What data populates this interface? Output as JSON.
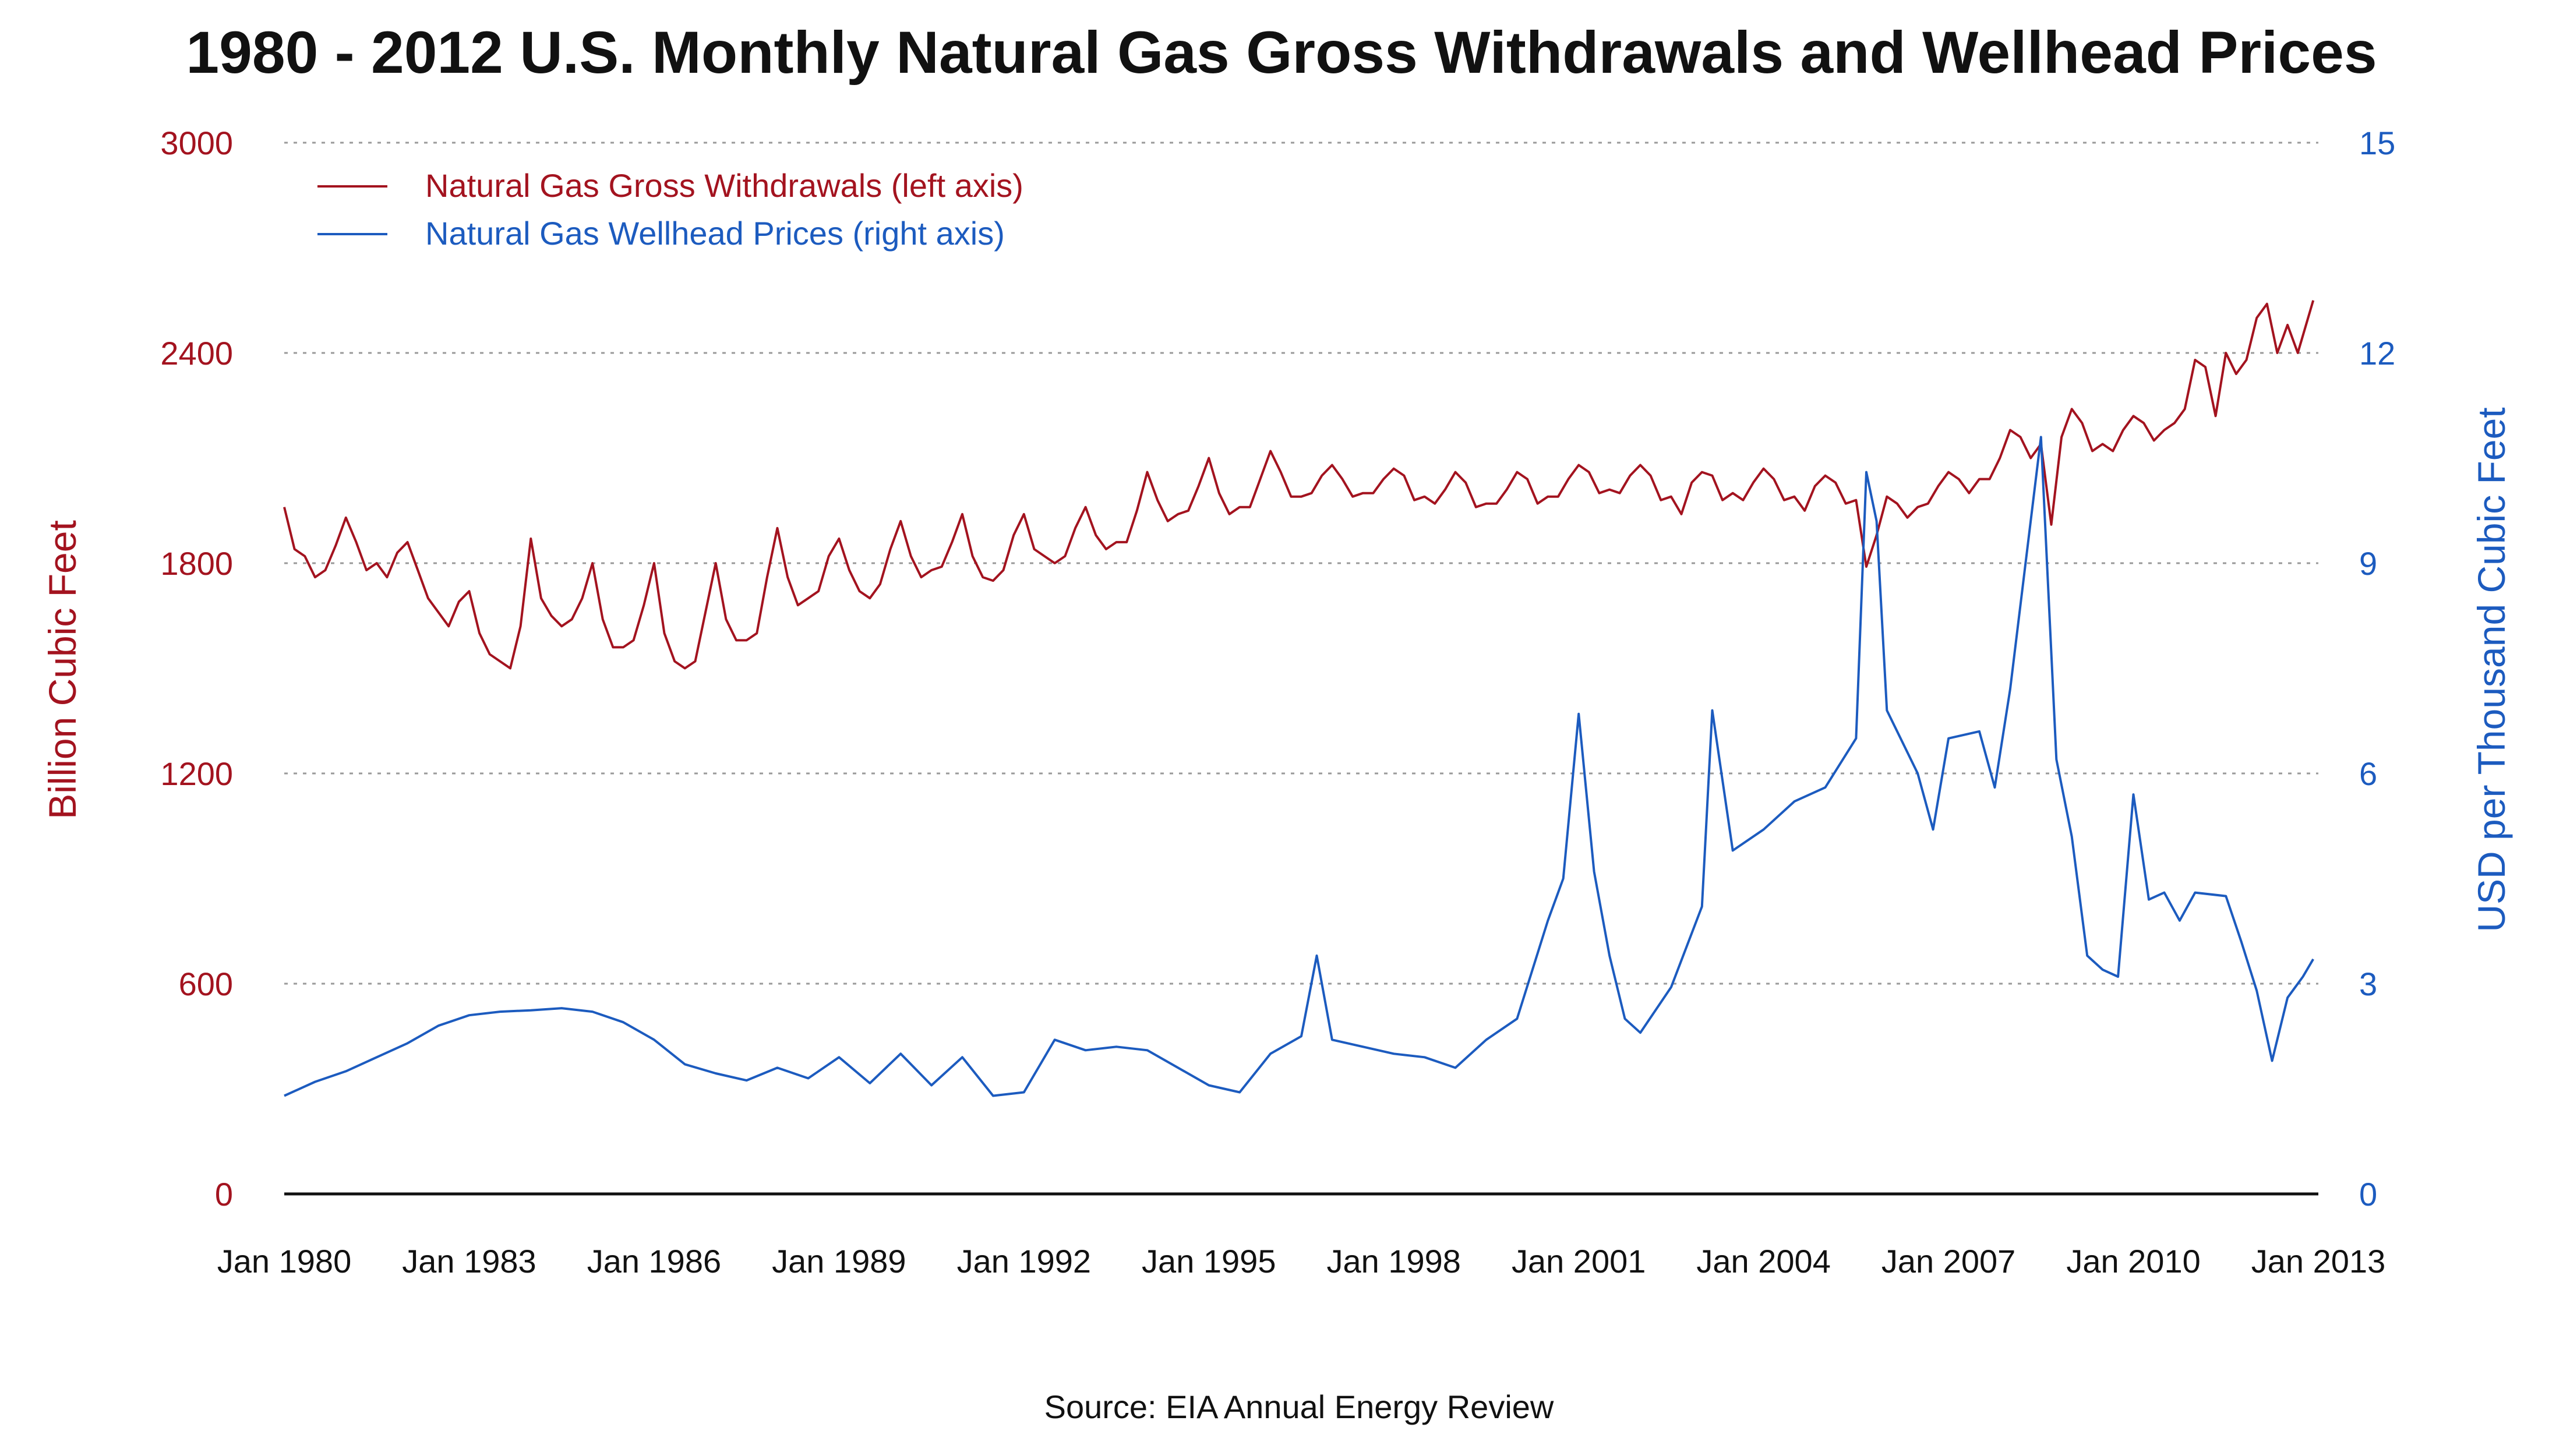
{
  "chart_data": {
    "type": "line",
    "title": "1980 - 2012 U.S. Monthly Natural Gas Gross Withdrawals and Wellhead Prices",
    "source": "Source: EIA Annual Energy Review",
    "xlabel": "",
    "x_start": "Jan 1980",
    "x_end": "Jan 2013",
    "x_ticks": [
      "Jan 1980",
      "Jan 1983",
      "Jan 1986",
      "Jan 1989",
      "Jan 1992",
      "Jan 1995",
      "Jan 1998",
      "Jan 2001",
      "Jan 2004",
      "Jan 2007",
      "Jan 2010",
      "Jan 2013"
    ],
    "y_left": {
      "label": "Billion Cubic Feet",
      "lim": [
        0,
        3000
      ],
      "ticks": [
        "0",
        "600",
        "1200",
        "1800",
        "2400",
        "3000"
      ],
      "color": "#a3131f"
    },
    "y_right": {
      "label": "USD per Thousand Cubic Feet",
      "lim": [
        0,
        15
      ],
      "ticks": [
        "0",
        "3",
        "6",
        "9",
        "12",
        "15"
      ],
      "color": "#1c5bbf"
    },
    "grid": "horizontal dotted",
    "legend_position": "top-left",
    "series": [
      {
        "name": "Natural Gas Gross Withdrawals (left axis)",
        "axis": "left",
        "color": "#a3131f",
        "points": [
          [
            "Jan 1980",
            1960
          ],
          [
            "Mar 1980",
            1840
          ],
          [
            "May 1980",
            1820
          ],
          [
            "Jul 1980",
            1760
          ],
          [
            "Sep 1980",
            1780
          ],
          [
            "Nov 1980",
            1850
          ],
          [
            "Jan 1981",
            1930
          ],
          [
            "Mar 1981",
            1860
          ],
          [
            "May 1981",
            1780
          ],
          [
            "Jul 1981",
            1800
          ],
          [
            "Sep 1981",
            1760
          ],
          [
            "Nov 1981",
            1830
          ],
          [
            "Jan 1982",
            1860
          ],
          [
            "Mar 1982",
            1780
          ],
          [
            "May 1982",
            1700
          ],
          [
            "Jul 1982",
            1660
          ],
          [
            "Sep 1982",
            1620
          ],
          [
            "Nov 1982",
            1690
          ],
          [
            "Jan 1983",
            1720
          ],
          [
            "Mar 1983",
            1600
          ],
          [
            "May 1983",
            1540
          ],
          [
            "Jul 1983",
            1520
          ],
          [
            "Sep 1983",
            1500
          ],
          [
            "Nov 1983",
            1620
          ],
          [
            "Jan 1984",
            1870
          ],
          [
            "Mar 1984",
            1700
          ],
          [
            "May 1984",
            1650
          ],
          [
            "Jul 1984",
            1620
          ],
          [
            "Sep 1984",
            1640
          ],
          [
            "Nov 1984",
            1700
          ],
          [
            "Jan 1985",
            1800
          ],
          [
            "Mar 1985",
            1640
          ],
          [
            "May 1985",
            1560
          ],
          [
            "Jul 1985",
            1560
          ],
          [
            "Sep 1985",
            1580
          ],
          [
            "Nov 1985",
            1680
          ],
          [
            "Jan 1986",
            1800
          ],
          [
            "Mar 1986",
            1600
          ],
          [
            "May 1986",
            1520
          ],
          [
            "Jul 1986",
            1500
          ],
          [
            "Sep 1986",
            1520
          ],
          [
            "Nov 1986",
            1660
          ],
          [
            "Jan 1987",
            1800
          ],
          [
            "Mar 1987",
            1640
          ],
          [
            "May 1987",
            1580
          ],
          [
            "Jul 1987",
            1580
          ],
          [
            "Sep 1987",
            1600
          ],
          [
            "Nov 1987",
            1760
          ],
          [
            "Jan 1988",
            1900
          ],
          [
            "Mar 1988",
            1760
          ],
          [
            "May 1988",
            1680
          ],
          [
            "Jul 1988",
            1700
          ],
          [
            "Sep 1988",
            1720
          ],
          [
            "Nov 1988",
            1820
          ],
          [
            "Jan 1989",
            1870
          ],
          [
            "Mar 1989",
            1780
          ],
          [
            "May 1989",
            1720
          ],
          [
            "Jul 1989",
            1700
          ],
          [
            "Sep 1989",
            1740
          ],
          [
            "Nov 1989",
            1840
          ],
          [
            "Jan 1990",
            1920
          ],
          [
            "Mar 1990",
            1820
          ],
          [
            "May 1990",
            1760
          ],
          [
            "Jul 1990",
            1780
          ],
          [
            "Sep 1990",
            1790
          ],
          [
            "Nov 1990",
            1860
          ],
          [
            "Jan 1991",
            1940
          ],
          [
            "Mar 1991",
            1820
          ],
          [
            "May 1991",
            1760
          ],
          [
            "Jul 1991",
            1750
          ],
          [
            "Sep 1991",
            1780
          ],
          [
            "Nov 1991",
            1880
          ],
          [
            "Jan 1992",
            1940
          ],
          [
            "Mar 1992",
            1840
          ],
          [
            "May 1992",
            1820
          ],
          [
            "Jul 1992",
            1800
          ],
          [
            "Sep 1992",
            1820
          ],
          [
            "Nov 1992",
            1900
          ],
          [
            "Jan 1993",
            1960
          ],
          [
            "Mar 1993",
            1880
          ],
          [
            "May 1993",
            1840
          ],
          [
            "Jul 1993",
            1860
          ],
          [
            "Sep 1993",
            1860
          ],
          [
            "Nov 1993",
            1950
          ],
          [
            "Jan 1994",
            2060
          ],
          [
            "Mar 1994",
            1980
          ],
          [
            "May 1994",
            1920
          ],
          [
            "Jul 1994",
            1940
          ],
          [
            "Sep 1994",
            1950
          ],
          [
            "Nov 1994",
            2020
          ],
          [
            "Jan 1995",
            2100
          ],
          [
            "Mar 1995",
            2000
          ],
          [
            "May 1995",
            1940
          ],
          [
            "Jul 1995",
            1960
          ],
          [
            "Sep 1995",
            1960
          ],
          [
            "Nov 1995",
            2040
          ],
          [
            "Jan 1996",
            2120
          ],
          [
            "Mar 1996",
            2060
          ],
          [
            "May 1996",
            1990
          ],
          [
            "Jul 1996",
            1990
          ],
          [
            "Sep 1996",
            2000
          ],
          [
            "Nov 1996",
            2050
          ],
          [
            "Jan 1997",
            2080
          ],
          [
            "Mar 1997",
            2040
          ],
          [
            "May 1997",
            1990
          ],
          [
            "Jul 1997",
            2000
          ],
          [
            "Sep 1997",
            2000
          ],
          [
            "Nov 1997",
            2040
          ],
          [
            "Jan 1998",
            2070
          ],
          [
            "Mar 1998",
            2050
          ],
          [
            "May 1998",
            1980
          ],
          [
            "Jul 1998",
            1990
          ],
          [
            "Sep 1998",
            1970
          ],
          [
            "Nov 1998",
            2010
          ],
          [
            "Jan 1999",
            2060
          ],
          [
            "Mar 1999",
            2030
          ],
          [
            "May 1999",
            1960
          ],
          [
            "Jul 1999",
            1970
          ],
          [
            "Sep 1999",
            1970
          ],
          [
            "Nov 1999",
            2010
          ],
          [
            "Jan 2000",
            2060
          ],
          [
            "Mar 2000",
            2040
          ],
          [
            "May 2000",
            1970
          ],
          [
            "Jul 2000",
            1990
          ],
          [
            "Sep 2000",
            1990
          ],
          [
            "Nov 2000",
            2040
          ],
          [
            "Jan 2001",
            2080
          ],
          [
            "Mar 2001",
            2060
          ],
          [
            "May 2001",
            2000
          ],
          [
            "Jul 2001",
            2010
          ],
          [
            "Sep 2001",
            2000
          ],
          [
            "Nov 2001",
            2050
          ],
          [
            "Jan 2002",
            2080
          ],
          [
            "Mar 2002",
            2050
          ],
          [
            "May 2002",
            1980
          ],
          [
            "Jul 2002",
            1990
          ],
          [
            "Sep 2002",
            1940
          ],
          [
            "Nov 2002",
            2030
          ],
          [
            "Jan 2003",
            2060
          ],
          [
            "Mar 2003",
            2050
          ],
          [
            "May 2003",
            1980
          ],
          [
            "Jul 2003",
            2000
          ],
          [
            "Sep 2003",
            1980
          ],
          [
            "Nov 2003",
            2030
          ],
          [
            "Jan 2004",
            2070
          ],
          [
            "Mar 2004",
            2040
          ],
          [
            "May 2004",
            1980
          ],
          [
            "Jul 2004",
            1990
          ],
          [
            "Sep 2004",
            1950
          ],
          [
            "Nov 2004",
            2020
          ],
          [
            "Jan 2005",
            2050
          ],
          [
            "Mar 2005",
            2030
          ],
          [
            "May 2005",
            1970
          ],
          [
            "Jul 2005",
            1980
          ],
          [
            "Sep 2005",
            1790
          ],
          [
            "Nov 2005",
            1880
          ],
          [
            "Jan 2006",
            1990
          ],
          [
            "Mar 2006",
            1970
          ],
          [
            "May 2006",
            1930
          ],
          [
            "Jul 2006",
            1960
          ],
          [
            "Sep 2006",
            1970
          ],
          [
            "Nov 2006",
            2020
          ],
          [
            "Jan 2007",
            2060
          ],
          [
            "Mar 2007",
            2040
          ],
          [
            "May 2007",
            2000
          ],
          [
            "Jul 2007",
            2040
          ],
          [
            "Sep 2007",
            2040
          ],
          [
            "Nov 2007",
            2100
          ],
          [
            "Jan 2008",
            2180
          ],
          [
            "Mar 2008",
            2160
          ],
          [
            "May 2008",
            2100
          ],
          [
            "Jul 2008",
            2140
          ],
          [
            "Sep 2008",
            1910
          ],
          [
            "Nov 2008",
            2160
          ],
          [
            "Jan 2009",
            2240
          ],
          [
            "Mar 2009",
            2200
          ],
          [
            "May 2009",
            2120
          ],
          [
            "Jul 2009",
            2140
          ],
          [
            "Sep 2009",
            2120
          ],
          [
            "Nov 2009",
            2180
          ],
          [
            "Jan 2010",
            2220
          ],
          [
            "Mar 2010",
            2200
          ],
          [
            "May 2010",
            2150
          ],
          [
            "Jul 2010",
            2180
          ],
          [
            "Sep 2010",
            2200
          ],
          [
            "Nov 2010",
            2240
          ],
          [
            "Jan 2011",
            2380
          ],
          [
            "Mar 2011",
            2360
          ],
          [
            "May 2011",
            2220
          ],
          [
            "Jul 2011",
            2400
          ],
          [
            "Sep 2011",
            2340
          ],
          [
            "Nov 2011",
            2380
          ],
          [
            "Jan 2012",
            2500
          ],
          [
            "Mar 2012",
            2540
          ],
          [
            "May 2012",
            2400
          ],
          [
            "Jul 2012",
            2480
          ],
          [
            "Sep 2012",
            2400
          ],
          [
            "Dec 2012",
            2550
          ]
        ]
      },
      {
        "name": "Natural Gas Wellhead Prices (right axis)",
        "axis": "right",
        "color": "#1c5bbf",
        "points": [
          [
            "Jan 1980",
            1.4
          ],
          [
            "Jul 1980",
            1.6
          ],
          [
            "Jan 1981",
            1.75
          ],
          [
            "Jul 1981",
            1.95
          ],
          [
            "Jan 1982",
            2.15
          ],
          [
            "Jul 1982",
            2.4
          ],
          [
            "Jan 1983",
            2.55
          ],
          [
            "Jul 1983",
            2.6
          ],
          [
            "Jan 1984",
            2.62
          ],
          [
            "Jul 1984",
            2.65
          ],
          [
            "Jan 1985",
            2.6
          ],
          [
            "Jul 1985",
            2.45
          ],
          [
            "Jan 1986",
            2.2
          ],
          [
            "Jul 1986",
            1.85
          ],
          [
            "Jan 1987",
            1.72
          ],
          [
            "Jul 1987",
            1.62
          ],
          [
            "Jan 1988",
            1.8
          ],
          [
            "Jul 1988",
            1.65
          ],
          [
            "Jan 1989",
            1.95
          ],
          [
            "Jul 1989",
            1.58
          ],
          [
            "Jan 1990",
            2.0
          ],
          [
            "Jul 1990",
            1.55
          ],
          [
            "Jan 1991",
            1.95
          ],
          [
            "Jul 1991",
            1.4
          ],
          [
            "Jan 1992",
            1.45
          ],
          [
            "Jul 1992",
            2.2
          ],
          [
            "Jan 1993",
            2.05
          ],
          [
            "Jul 1993",
            2.1
          ],
          [
            "Jan 1994",
            2.05
          ],
          [
            "Jul 1994",
            1.8
          ],
          [
            "Jan 1995",
            1.55
          ],
          [
            "Jul 1995",
            1.45
          ],
          [
            "Jan 1996",
            2.0
          ],
          [
            "Jul 1996",
            2.25
          ],
          [
            "Oct 1996",
            3.4
          ],
          [
            "Jan 1997",
            2.2
          ],
          [
            "Jul 1997",
            2.1
          ],
          [
            "Jan 1998",
            2.0
          ],
          [
            "Jul 1998",
            1.95
          ],
          [
            "Jan 1999",
            1.8
          ],
          [
            "Jul 1999",
            2.2
          ],
          [
            "Jan 2000",
            2.5
          ],
          [
            "Jul 2000",
            3.9
          ],
          [
            "Oct 2000",
            4.5
          ],
          [
            "Jan 2001",
            6.85
          ],
          [
            "Apr 2001",
            4.6
          ],
          [
            "Jul 2001",
            3.4
          ],
          [
            "Oct 2001",
            2.5
          ],
          [
            "Jan 2002",
            2.3
          ],
          [
            "Jul 2002",
            2.95
          ],
          [
            "Jan 2003",
            4.1
          ],
          [
            "Mar 2003",
            6.9
          ],
          [
            "Jul 2003",
            4.9
          ],
          [
            "Jan 2004",
            5.2
          ],
          [
            "Jul 2004",
            5.6
          ],
          [
            "Jan 2005",
            5.8
          ],
          [
            "Jul 2005",
            6.5
          ],
          [
            "Sep 2005",
            10.3
          ],
          [
            "Nov 2005",
            9.6
          ],
          [
            "Jan 2006",
            6.9
          ],
          [
            "Jul 2006",
            6.0
          ],
          [
            "Oct 2006",
            5.2
          ],
          [
            "Jan 2007",
            6.5
          ],
          [
            "Jul 2007",
            6.6
          ],
          [
            "Oct 2007",
            5.8
          ],
          [
            "Jan 2008",
            7.2
          ],
          [
            "Jul 2008",
            10.8
          ],
          [
            "Oct 2008",
            6.2
          ],
          [
            "Jan 2009",
            5.1
          ],
          [
            "Apr 2009",
            3.4
          ],
          [
            "Jul 2009",
            3.2
          ],
          [
            "Oct 2009",
            3.1
          ],
          [
            "Jan 2010",
            5.7
          ],
          [
            "Apr 2010",
            4.2
          ],
          [
            "Jul 2010",
            4.3
          ],
          [
            "Oct 2010",
            3.9
          ],
          [
            "Jan 2011",
            4.3
          ],
          [
            "Jul 2011",
            4.25
          ],
          [
            "Oct 2011",
            3.6
          ],
          [
            "Jan 2012",
            2.9
          ],
          [
            "Apr 2012",
            1.9
          ],
          [
            "Jul 2012",
            2.8
          ],
          [
            "Oct 2012",
            3.1
          ],
          [
            "Dec 2012",
            3.35
          ]
        ]
      }
    ]
  }
}
